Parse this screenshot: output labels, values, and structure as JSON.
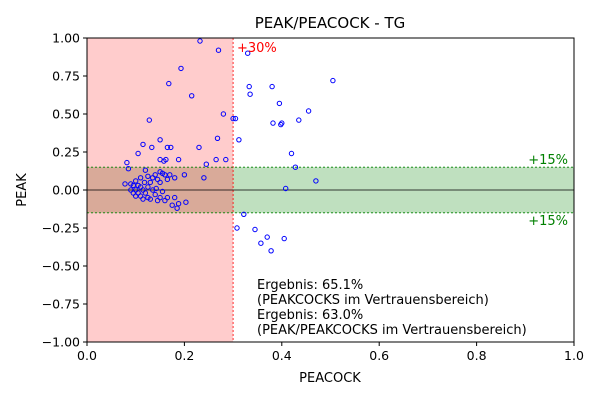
{
  "chart_data": {
    "type": "scatter",
    "title": "PEAK/PEACOCK - TG",
    "xlabel": "PEACOCK",
    "ylabel": "PEAK",
    "xlim": [
      0,
      1
    ],
    "ylim": [
      -1,
      1
    ],
    "xticks": [
      0.0,
      0.2,
      0.4,
      0.6,
      0.8,
      1.0
    ],
    "xtick_labels": [
      "0.0",
      "0.2",
      "0.4",
      "0.6",
      "0.8",
      "1.0"
    ],
    "yticks": [
      -1.0,
      -0.75,
      -0.5,
      -0.25,
      0.0,
      0.25,
      0.5,
      0.75,
      1.0
    ],
    "ytick_labels": [
      "−1.00",
      "−0.75",
      "−0.50",
      "−0.25",
      "0.00",
      "0.25",
      "0.50",
      "0.75",
      "1.00"
    ],
    "grid": false,
    "shaded_regions": [
      {
        "axis": "x",
        "from": 0.0,
        "to": 0.3,
        "color": "#ffcccc",
        "label": "+30%",
        "label_color": "#ff0000"
      },
      {
        "axis": "y",
        "from": -0.15,
        "to": 0.15,
        "color": "#bfe0bf",
        "label_top": "+15%",
        "label_bottom": "+15%",
        "label_color": "#008000"
      }
    ],
    "overlap_color": "#d9aa99",
    "marker_color": "#0000ff",
    "annotations": [
      "Ergebnis: 65.1%",
      "(PEAKCOCKS im Vertrauensbereich)",
      "Ergebnis: 63.0%",
      "(PEAK/PEAKCOCKS im Vertrauensbereich)"
    ],
    "series": [
      {
        "points": [
          [
            0.232,
            0.98
          ],
          [
            0.27,
            0.92
          ],
          [
            0.33,
            0.9
          ],
          [
            0.193,
            0.8
          ],
          [
            0.505,
            0.72
          ],
          [
            0.168,
            0.7
          ],
          [
            0.333,
            0.68
          ],
          [
            0.38,
            0.68
          ],
          [
            0.335,
            0.63
          ],
          [
            0.215,
            0.62
          ],
          [
            0.395,
            0.57
          ],
          [
            0.455,
            0.52
          ],
          [
            0.28,
            0.5
          ],
          [
            0.3,
            0.47
          ],
          [
            0.305,
            0.47
          ],
          [
            0.128,
            0.46
          ],
          [
            0.435,
            0.46
          ],
          [
            0.382,
            0.44
          ],
          [
            0.4,
            0.44
          ],
          [
            0.398,
            0.43
          ],
          [
            0.268,
            0.34
          ],
          [
            0.312,
            0.33
          ],
          [
            0.15,
            0.33
          ],
          [
            0.115,
            0.3
          ],
          [
            0.133,
            0.28
          ],
          [
            0.165,
            0.28
          ],
          [
            0.172,
            0.28
          ],
          [
            0.23,
            0.28
          ],
          [
            0.105,
            0.24
          ],
          [
            0.42,
            0.24
          ],
          [
            0.265,
            0.2
          ],
          [
            0.285,
            0.2
          ],
          [
            0.15,
            0.2
          ],
          [
            0.158,
            0.19
          ],
          [
            0.162,
            0.2
          ],
          [
            0.188,
            0.2
          ],
          [
            0.245,
            0.17
          ],
          [
            0.082,
            0.18
          ],
          [
            0.428,
            0.15
          ],
          [
            0.085,
            0.14
          ],
          [
            0.12,
            0.13
          ],
          [
            0.15,
            0.12
          ],
          [
            0.155,
            0.11
          ],
          [
            0.16,
            0.1
          ],
          [
            0.17,
            0.1
          ],
          [
            0.14,
            0.1
          ],
          [
            0.2,
            0.1
          ],
          [
            0.125,
            0.09
          ],
          [
            0.11,
            0.08
          ],
          [
            0.135,
            0.08
          ],
          [
            0.145,
            0.07
          ],
          [
            0.165,
            0.07
          ],
          [
            0.18,
            0.08
          ],
          [
            0.24,
            0.08
          ],
          [
            0.47,
            0.06
          ],
          [
            0.1,
            0.06
          ],
          [
            0.118,
            0.05
          ],
          [
            0.13,
            0.05
          ],
          [
            0.15,
            0.05
          ],
          [
            0.078,
            0.04
          ],
          [
            0.09,
            0.04
          ],
          [
            0.095,
            0.03
          ],
          [
            0.105,
            0.03
          ],
          [
            0.11,
            0.02
          ],
          [
            0.125,
            0.02
          ],
          [
            0.142,
            0.01
          ],
          [
            0.408,
            0.01
          ],
          [
            0.09,
            0.0
          ],
          [
            0.1,
            0.0
          ],
          [
            0.115,
            0.0
          ],
          [
            0.135,
            0.0
          ],
          [
            0.155,
            -0.01
          ],
          [
            0.095,
            -0.02
          ],
          [
            0.105,
            -0.02
          ],
          [
            0.12,
            -0.02
          ],
          [
            0.14,
            -0.03
          ],
          [
            0.1,
            -0.04
          ],
          [
            0.11,
            -0.04
          ],
          [
            0.125,
            -0.05
          ],
          [
            0.15,
            -0.05
          ],
          [
            0.165,
            -0.05
          ],
          [
            0.18,
            -0.05
          ],
          [
            0.13,
            -0.06
          ],
          [
            0.145,
            -0.07
          ],
          [
            0.16,
            -0.07
          ],
          [
            0.115,
            -0.06
          ],
          [
            0.188,
            -0.09
          ],
          [
            0.175,
            -0.1
          ],
          [
            0.203,
            -0.08
          ],
          [
            0.185,
            -0.12
          ],
          [
            0.322,
            -0.16
          ],
          [
            0.308,
            -0.25
          ],
          [
            0.345,
            -0.26
          ],
          [
            0.405,
            -0.32
          ],
          [
            0.37,
            -0.31
          ],
          [
            0.357,
            -0.35
          ],
          [
            0.378,
            -0.4
          ]
        ]
      }
    ]
  }
}
